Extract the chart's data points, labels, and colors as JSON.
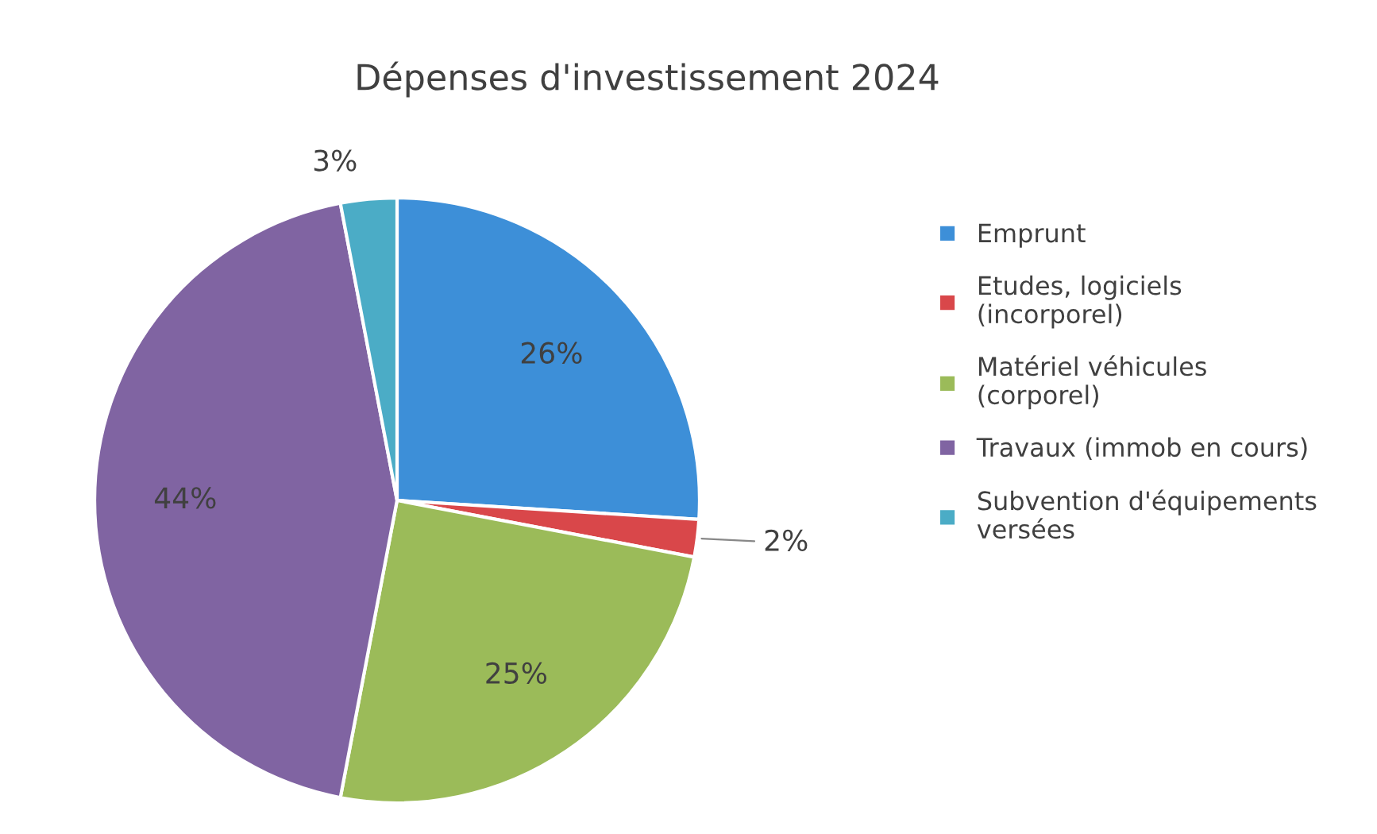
{
  "chart_data": {
    "type": "pie",
    "title": "Dépenses d'investissement 2024",
    "categories": [
      "Emprunt",
      "Etudes, logiciels\n(incorporel)",
      "Matériel véhicules\n(corporel)",
      "Travaux (immob en cours)",
      "Subvention d'équipements\nversées"
    ],
    "values": [
      26,
      2,
      25,
      44,
      3
    ],
    "colors": [
      "#3d8fd8",
      "#d9474a",
      "#9bbb59",
      "#8064a2",
      "#4bacc6"
    ],
    "value_labels": [
      "26%",
      "2%",
      "25%",
      "44%",
      "3%"
    ],
    "legend": "right"
  }
}
